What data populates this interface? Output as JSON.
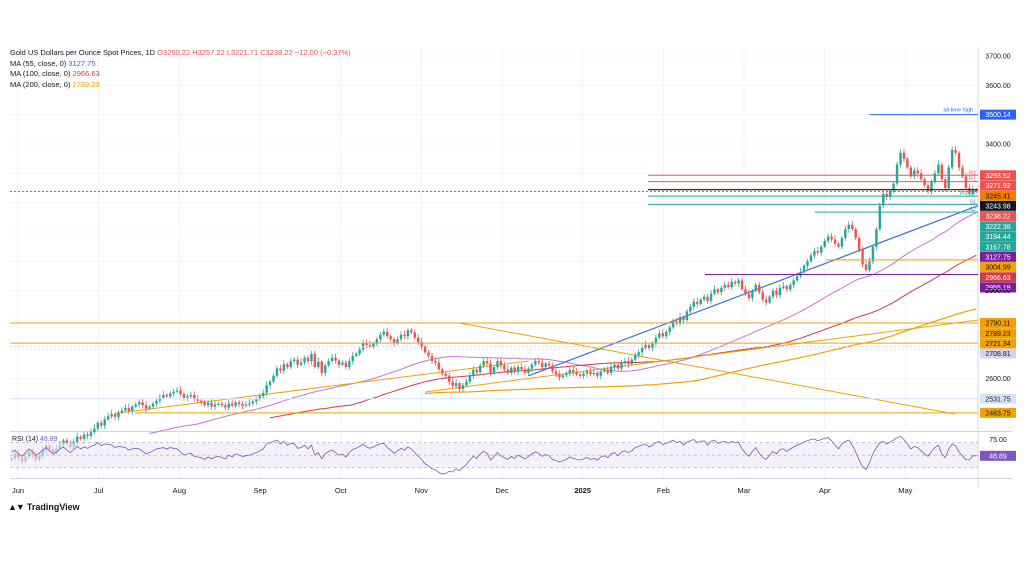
{
  "legend": {
    "symbol": "Gold US Dollars per Ounce Spot Prices, 1D",
    "open": "O3250.22",
    "high": "H3257.22",
    "low": "L3221.71",
    "close": "C3238.22",
    "change": "−12.00 (−0.37%)",
    "ma55": {
      "label": "MA (55, close, 0)",
      "value": "3127.75",
      "color": "#2962ff"
    },
    "ma100": {
      "label": "MA (100, close, 0)",
      "value": "2966.63",
      "color": "#d23a4a"
    },
    "ma200": {
      "label": "MA (200, close, 0)",
      "value": "2789.23",
      "color": "#f2a100"
    }
  },
  "rsi_label": {
    "name": "RSI (14)",
    "value": "48.89"
  },
  "branding": "TradingView",
  "chart_data": {
    "type": "candlestick",
    "price_axis": {
      "ticks": [
        2600,
        2700,
        2800,
        2900,
        3000,
        3100,
        3200,
        3300,
        3400,
        3500,
        3600,
        3700
      ],
      "visible_labels": [
        "3700.00",
        "3600.00",
        "3400.00",
        "2900.00",
        "2600.00"
      ]
    },
    "x_ticks": [
      "Jun",
      "Jul",
      "Aug",
      "Sep",
      "Oct",
      "Nov",
      "Dec",
      "2025",
      "Feb",
      "Mar",
      "Apr",
      "May"
    ],
    "closes": [
      2328,
      2345,
      2330,
      2318,
      2335,
      2352,
      2340,
      2325,
      2338,
      2356,
      2372,
      2360,
      2348,
      2362,
      2375,
      2390,
      2380,
      2368,
      2385,
      2402,
      2395,
      2410,
      2405,
      2418,
      2430,
      2450,
      2440,
      2462,
      2472,
      2480,
      2470,
      2485,
      2492,
      2500,
      2490,
      2505,
      2512,
      2520,
      2510,
      2498,
      2505,
      2515,
      2525,
      2535,
      2545,
      2540,
      2550,
      2556,
      2560,
      2548,
      2535,
      2540,
      2545,
      2530,
      2525,
      2520,
      2510,
      2518,
      2505,
      2512,
      2515,
      2510,
      2502,
      2515,
      2508,
      2520,
      2514,
      2508,
      2512,
      2516,
      2523,
      2530,
      2540,
      2552,
      2578,
      2590,
      2610,
      2635,
      2628,
      2650,
      2640,
      2660,
      2665,
      2648,
      2655,
      2672,
      2660,
      2685,
      2640,
      2658,
      2620,
      2645,
      2660,
      2672,
      2662,
      2648,
      2655,
      2640,
      2660,
      2678,
      2685,
      2700,
      2722,
      2715,
      2710,
      2720,
      2735,
      2750,
      2760,
      2745,
      2735,
      2720,
      2735,
      2750,
      2745,
      2765,
      2758,
      2740,
      2725,
      2710,
      2690,
      2678,
      2660,
      2655,
      2632,
      2618,
      2610,
      2590,
      2575,
      2585,
      2565,
      2578,
      2590,
      2610,
      2630,
      2622,
      2645,
      2660,
      2652,
      2620,
      2640,
      2660,
      2645,
      2632,
      2620,
      2638,
      2625,
      2640,
      2632,
      2620,
      2635,
      2648,
      2660,
      2655,
      2640,
      2652,
      2645,
      2625,
      2615,
      2605,
      2612,
      2618,
      2630,
      2622,
      2615,
      2610,
      2618,
      2625,
      2615,
      2620,
      2610,
      2625,
      2630,
      2620,
      2640,
      2648,
      2635,
      2655,
      2660,
      2650,
      2665,
      2680,
      2690,
      2705,
      2715,
      2705,
      2720,
      2740,
      2755,
      2745,
      2760,
      2775,
      2795,
      2790,
      2810,
      2800,
      2830,
      2845,
      2862,
      2855,
      2870,
      2880,
      2865,
      2890,
      2905,
      2895,
      2910,
      2920,
      2912,
      2930,
      2925,
      2935,
      2905,
      2890,
      2875,
      2900,
      2920,
      2895,
      2870,
      2860,
      2880,
      2900,
      2885,
      2910,
      2915,
      2905,
      2920,
      2935,
      2950,
      2965,
      2985,
      3000,
      3020,
      3035,
      3030,
      3050,
      3070,
      3085,
      3075,
      3060,
      3050,
      3080,
      3110,
      3125,
      3110,
      3080,
      3040,
      2990,
      2970,
      3000,
      3050,
      3110,
      3190,
      3230,
      3220,
      3240,
      3265,
      3330,
      3370,
      3350,
      3320,
      3290,
      3310,
      3300,
      3280,
      3260,
      3240,
      3270,
      3300,
      3330,
      3280,
      3250,
      3320,
      3380,
      3370,
      3320,
      3290,
      3250,
      3230,
      3245,
      3238
    ],
    "price_levels": [
      {
        "label": "all-time high",
        "value": "3500.14",
        "color": "#2962ff"
      },
      {
        "label": "R2",
        "value": "3293.52",
        "color": "#ef5350"
      },
      {
        "label": "R1",
        "value": "3271.92",
        "color": "#ef5350"
      },
      {
        "label": "",
        "value": "3245.41",
        "color": "#f57c00"
      },
      {
        "label": "",
        "value": "3243.98",
        "color": "#131722"
      },
      {
        "label": "",
        "value": "3238.22",
        "color": "#ef5350"
      },
      {
        "label": "PIVOT",
        "value": "3222.38",
        "color": "#26a69a"
      },
      {
        "label": "S1",
        "value": "3194.44",
        "color": "#26a69a"
      },
      {
        "label": "S2",
        "value": "3167.78",
        "color": "#26a69a"
      },
      {
        "label": "",
        "value": "3127.75",
        "color": "#7b1fa2"
      },
      {
        "label": "",
        "value": "3004.99",
        "color": "#f2a100"
      },
      {
        "label": "",
        "value": "2966.63",
        "color": "#d23a4a"
      },
      {
        "label": "",
        "value": "2955.18",
        "color": "#7b1fa2"
      },
      {
        "label": "",
        "value": "2790.11",
        "color": "#f2a100"
      },
      {
        "label": "",
        "value": "2789.23",
        "color": "#f2a100"
      },
      {
        "label": "",
        "value": "2721.34",
        "color": "#f2a100"
      },
      {
        "label": "",
        "value": "2708.81",
        "color": "#d9d0ee"
      },
      {
        "label": "",
        "value": "2531.75",
        "color": "#d6e2f5"
      },
      {
        "label": "",
        "value": "2483.75",
        "color": "#f2a100"
      }
    ],
    "rsi": {
      "axis_labels": [
        "75.00",
        "48.89"
      ],
      "values": [
        55,
        58,
        52,
        48,
        54,
        60,
        56,
        50,
        53,
        58,
        62,
        57,
        52,
        55,
        60,
        63,
        58,
        54,
        59,
        64,
        60,
        63,
        61,
        64,
        66,
        70,
        65,
        68,
        67,
        66,
        62,
        64,
        63,
        62,
        58,
        60,
        61,
        60,
        56,
        52,
        54,
        57,
        60,
        61,
        62,
        60,
        62,
        61,
        60,
        55,
        50,
        52,
        53,
        48,
        47,
        46,
        43,
        47,
        44,
        47,
        48,
        46,
        44,
        50,
        47,
        52,
        50,
        48,
        49,
        50,
        52,
        54,
        57,
        60,
        68,
        70,
        72,
        74,
        68,
        72,
        66,
        69,
        68,
        61,
        62,
        66,
        60,
        66,
        50,
        54,
        44,
        52,
        56,
        58,
        54,
        50,
        52,
        47,
        54,
        59,
        61,
        64,
        68,
        63,
        61,
        63,
        66,
        68,
        69,
        62,
        58,
        53,
        57,
        61,
        58,
        63,
        60,
        54,
        48,
        43,
        36,
        33,
        28,
        27,
        22,
        20,
        21,
        24,
        23,
        28,
        25,
        30,
        35,
        42,
        48,
        45,
        52,
        56,
        53,
        42,
        48,
        54,
        49,
        46,
        43,
        48,
        45,
        50,
        47,
        44,
        48,
        52,
        55,
        53,
        48,
        51,
        49,
        43,
        41,
        39,
        41,
        43,
        47,
        45,
        43,
        42,
        44,
        46,
        43,
        45,
        42,
        47,
        49,
        46,
        52,
        54,
        49,
        55,
        57,
        54,
        57,
        62,
        64,
        66,
        68,
        63,
        66,
        70,
        72,
        67,
        69,
        71,
        74,
        70,
        72,
        66,
        71,
        73,
        75,
        70,
        72,
        73,
        66,
        72,
        74,
        69,
        71,
        72,
        69,
        72,
        70,
        71,
        60,
        53,
        48,
        56,
        62,
        53,
        46,
        43,
        50,
        56,
        52,
        59,
        60,
        56,
        60,
        63,
        66,
        68,
        71,
        73,
        75,
        76,
        73,
        75,
        77,
        78,
        73,
        66,
        60,
        68,
        72,
        74,
        66,
        55,
        42,
        31,
        27,
        38,
        52,
        62,
        70,
        72,
        68,
        71,
        74,
        78,
        80,
        75,
        68,
        60,
        64,
        62,
        57,
        52,
        48,
        56,
        62,
        66,
        52,
        46,
        60,
        68,
        65,
        55,
        49,
        43,
        42,
        49,
        48.89
      ]
    }
  }
}
